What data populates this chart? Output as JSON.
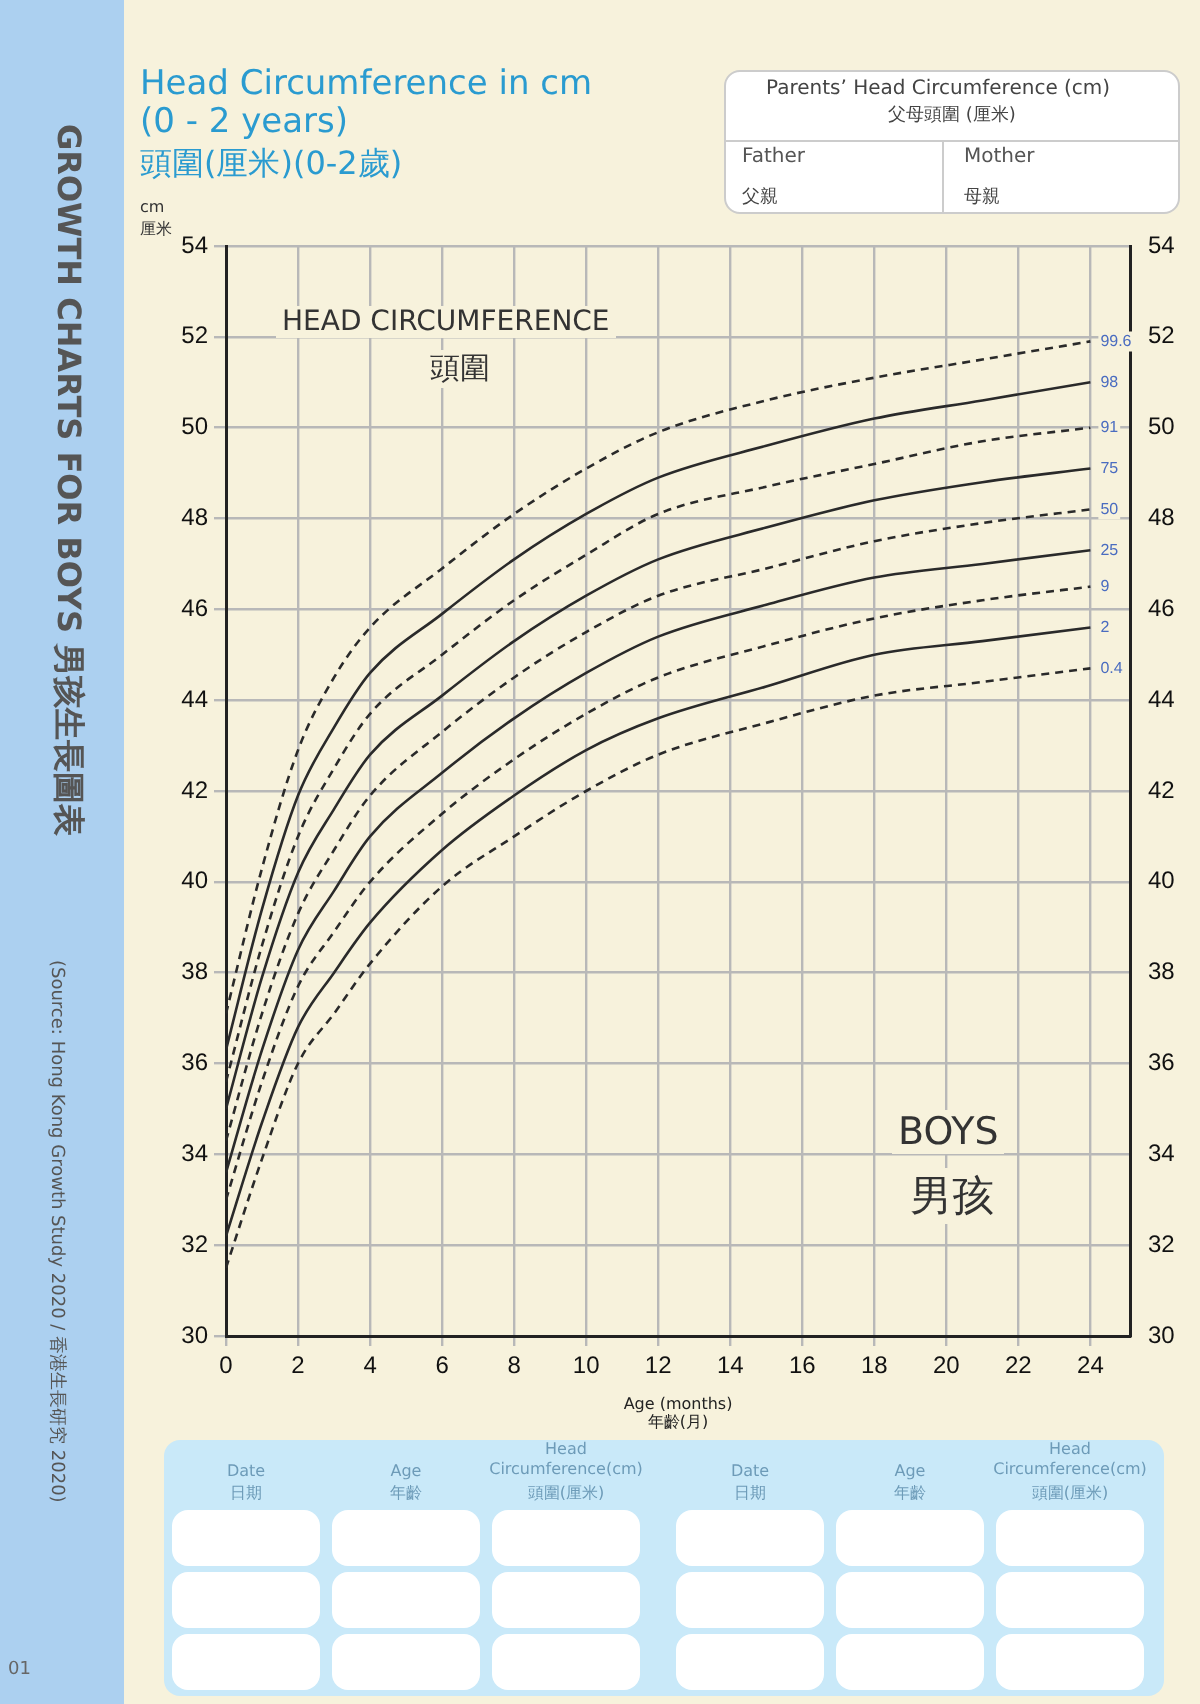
{
  "chart_data": {
    "type": "line",
    "title": "Head Circumference in cm\n(0 - 2 years)",
    "subtitle": "頭圍(厘米)(0-2歲)",
    "xlabel": "Age (months)\n年齡(月)",
    "ylabel": "cm\n厘米",
    "x": [
      0,
      1,
      2,
      3,
      4,
      6,
      8,
      10,
      12,
      15,
      18,
      21,
      24
    ],
    "series": [
      {
        "name": "99.6",
        "color": "#2a2a2a",
        "line_style": "dashed",
        "values": [
          37.1,
          40.3,
          42.9,
          44.5,
          45.6,
          46.9,
          48.1,
          49.1,
          49.9,
          50.6,
          51.1,
          51.5,
          51.9
        ]
      },
      {
        "name": "98",
        "color": "#2a2a2a",
        "line_style": "solid",
        "values": [
          36.3,
          39.4,
          41.9,
          43.4,
          44.6,
          45.9,
          47.1,
          48.1,
          48.9,
          49.6,
          50.2,
          50.6,
          51.0
        ]
      },
      {
        "name": "91",
        "color": "#2a2a2a",
        "line_style": "dashed",
        "values": [
          35.6,
          38.6,
          41.0,
          42.5,
          43.7,
          45.0,
          46.2,
          47.2,
          48.1,
          48.7,
          49.2,
          49.7,
          50.0
        ]
      },
      {
        "name": "75",
        "color": "#2a2a2a",
        "line_style": "solid",
        "values": [
          35.0,
          37.9,
          40.2,
          41.6,
          42.8,
          44.1,
          45.3,
          46.3,
          47.1,
          47.8,
          48.4,
          48.8,
          49.1
        ]
      },
      {
        "name": "50",
        "color": "#2a2a2a",
        "line_style": "dashed",
        "values": [
          34.3,
          37.1,
          39.3,
          40.7,
          41.9,
          43.3,
          44.5,
          45.5,
          46.3,
          46.9,
          47.5,
          47.9,
          48.2
        ]
      },
      {
        "name": "25",
        "color": "#2a2a2a",
        "line_style": "solid",
        "values": [
          33.6,
          36.3,
          38.5,
          39.8,
          41.0,
          42.4,
          43.6,
          44.6,
          45.4,
          46.1,
          46.7,
          47.0,
          47.3
        ]
      },
      {
        "name": "9",
        "color": "#2a2a2a",
        "line_style": "dashed",
        "values": [
          33.0,
          35.6,
          37.7,
          38.9,
          40.0,
          41.5,
          42.7,
          43.7,
          44.5,
          45.2,
          45.8,
          46.2,
          46.5
        ]
      },
      {
        "name": "2",
        "color": "#2a2a2a",
        "line_style": "solid",
        "values": [
          32.2,
          34.7,
          36.8,
          38.0,
          39.1,
          40.7,
          41.9,
          42.9,
          43.6,
          44.3,
          45.0,
          45.3,
          45.6
        ]
      },
      {
        "name": "0.4",
        "color": "#2a2a2a",
        "line_style": "dashed",
        "values": [
          31.5,
          33.9,
          36.0,
          37.1,
          38.2,
          39.9,
          41.0,
          42.0,
          42.8,
          43.5,
          44.1,
          44.4,
          44.7
        ]
      }
    ],
    "xlim": [
      0,
      25.1
    ],
    "xticks": [
      0,
      2,
      4,
      6,
      8,
      10,
      12,
      14,
      16,
      18,
      20,
      22,
      24
    ],
    "ylim": [
      30,
      54
    ],
    "yticks": [
      30,
      32,
      34,
      36,
      38,
      40,
      42,
      44,
      46,
      48,
      50,
      52,
      54
    ],
    "y2lim": [
      30,
      54
    ],
    "y2ticks": [
      30,
      32,
      34,
      36,
      38,
      40,
      42,
      44,
      46,
      48,
      50,
      52,
      54
    ],
    "grid": true,
    "legend": false,
    "marker": "none",
    "annotations": [
      "HEAD CIRCUMFERENCE",
      "頭圍",
      "BOYS",
      "男孩",
      "GROWTH CHARTS FOR BOYS 男孩生長圖表",
      "(Source: Hong Kong Growth Study 2020 / 香港生長研究 2020)",
      "01",
      "Parents’ Head Circumference (cm)",
      "父母頭圍 (厘米)",
      "Father",
      "父親",
      "Mother",
      "母親",
      "Date",
      "日期",
      "Age",
      "年齡",
      "Head Circumference(cm)",
      "頭圍(厘米)",
      "Date",
      "日期",
      "Age",
      "年齡",
      "Head Circumference(cm)",
      "頭圍(厘米)"
    ]
  }
}
